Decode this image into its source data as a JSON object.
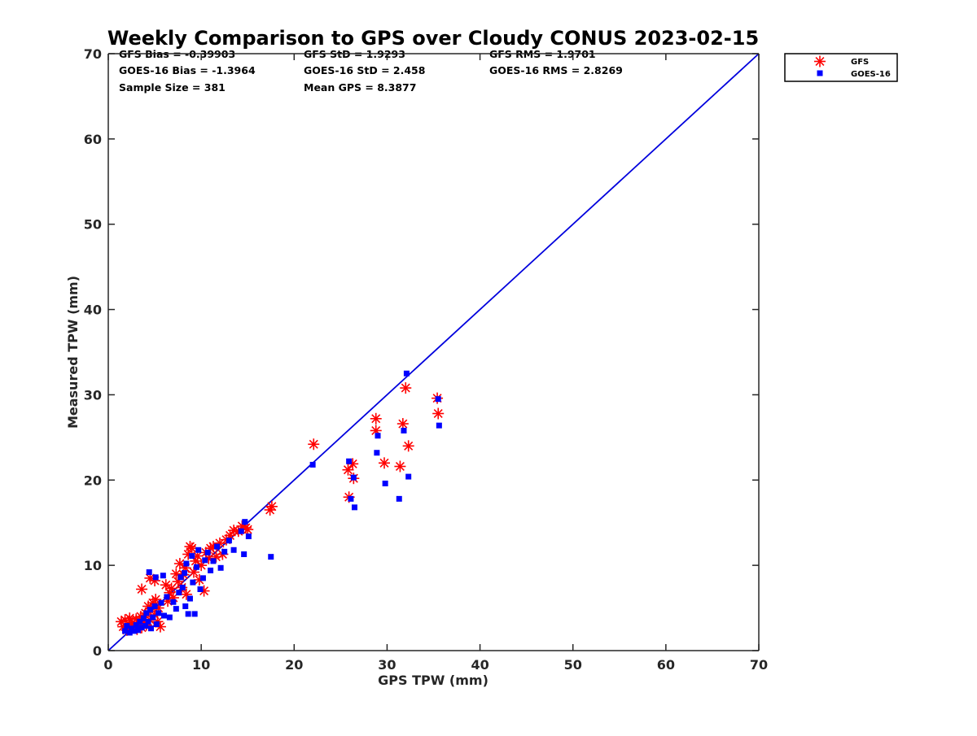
{
  "chart_data": {
    "type": "scatter",
    "title": "Weekly Comparison to GPS over Cloudy CONUS 2023-02-15",
    "xlabel": "GPS TPW (mm)",
    "ylabel": "Measured TPW (mm)",
    "xlim": [
      0,
      70
    ],
    "ylim": [
      0,
      70
    ],
    "xticks": [
      "0",
      "10",
      "20",
      "30",
      "40",
      "50",
      "60",
      "70"
    ],
    "yticks": [
      "0",
      "10",
      "20",
      "30",
      "40",
      "50",
      "60",
      "70"
    ],
    "grid": false,
    "legend_position": "outside top-right",
    "stats": [
      "GFS Bias = -0.39903",
      "GFS StD = 1.9293",
      "GFS RMS = 1.9701",
      "GOES-16 Bias = -1.3964",
      "GOES-16 StD = 2.458",
      "GOES-16 RMS = 2.8269",
      "Sample Size = 381",
      "Mean GPS = 8.3877"
    ],
    "reference_line": {
      "x": [
        0,
        70
      ],
      "y": [
        0,
        70
      ],
      "color": "#0000dd"
    },
    "series": [
      {
        "name": "GFS",
        "marker": "asterisk",
        "color": "#ff0000",
        "points": [
          [
            1.4,
            3.4
          ],
          [
            1.6,
            2.8
          ],
          [
            1.8,
            3.6
          ],
          [
            2.0,
            2.4
          ],
          [
            2.2,
            3.1
          ],
          [
            2.3,
            3.8
          ],
          [
            2.5,
            2.6
          ],
          [
            2.6,
            3.3
          ],
          [
            2.8,
            2.9
          ],
          [
            3.0,
            3.7
          ],
          [
            3.1,
            2.5
          ],
          [
            3.3,
            3.2
          ],
          [
            3.5,
            4.0
          ],
          [
            3.6,
            2.7
          ],
          [
            3.8,
            3.5
          ],
          [
            4.0,
            4.4
          ],
          [
            4.1,
            3.0
          ],
          [
            4.3,
            5.2
          ],
          [
            4.5,
            3.6
          ],
          [
            4.6,
            4.9
          ],
          [
            4.8,
            5.6
          ],
          [
            5.0,
            4.2
          ],
          [
            5.1,
            6.0
          ],
          [
            5.3,
            3.4
          ],
          [
            5.4,
            5.0
          ],
          [
            5.6,
            2.8
          ],
          [
            3.6,
            7.2
          ],
          [
            4.5,
            8.5
          ],
          [
            5.0,
            8.2
          ],
          [
            6.2,
            7.7
          ],
          [
            6.4,
            5.8
          ],
          [
            6.6,
            6.8
          ],
          [
            6.8,
            7.3
          ],
          [
            7.0,
            6.2
          ],
          [
            7.3,
            9.0
          ],
          [
            7.5,
            8.1
          ],
          [
            7.7,
            10.2
          ],
          [
            7.9,
            7.4
          ],
          [
            8.1,
            8.9
          ],
          [
            8.3,
            9.7
          ],
          [
            8.4,
            6.6
          ],
          [
            8.6,
            11.3
          ],
          [
            8.8,
            12.2
          ],
          [
            9.0,
            12.0
          ],
          [
            9.2,
            9.2
          ],
          [
            9.4,
            10.5
          ],
          [
            9.6,
            11.1
          ],
          [
            9.8,
            8.3
          ],
          [
            10.0,
            10.0
          ],
          [
            10.3,
            7.0
          ],
          [
            10.5,
            11.5
          ],
          [
            10.8,
            10.8
          ],
          [
            11.0,
            12.0
          ],
          [
            11.3,
            12.2
          ],
          [
            11.6,
            11.0
          ],
          [
            12.0,
            12.6
          ],
          [
            12.3,
            11.3
          ],
          [
            12.7,
            13.0
          ],
          [
            13.1,
            13.5
          ],
          [
            13.5,
            14.1
          ],
          [
            14.0,
            14.0
          ],
          [
            14.4,
            14.6
          ],
          [
            14.8,
            14.4
          ],
          [
            15.0,
            14.2
          ],
          [
            17.4,
            16.5
          ],
          [
            17.6,
            16.9
          ],
          [
            22.1,
            24.2
          ],
          [
            25.8,
            21.2
          ],
          [
            26.3,
            21.9
          ],
          [
            25.9,
            18.0
          ],
          [
            26.4,
            20.2
          ],
          [
            28.8,
            27.2
          ],
          [
            28.8,
            25.8
          ],
          [
            29.7,
            22.0
          ],
          [
            31.4,
            21.6
          ],
          [
            31.7,
            26.6
          ],
          [
            32.0,
            30.8
          ],
          [
            32.3,
            24.0
          ],
          [
            35.4,
            29.6
          ],
          [
            35.5,
            27.8
          ]
        ]
      },
      {
        "name": "GOES-16",
        "marker": "square",
        "color": "#0000ff",
        "points": [
          [
            1.8,
            2.3
          ],
          [
            2.0,
            2.9
          ],
          [
            2.3,
            2.1
          ],
          [
            2.5,
            2.6
          ],
          [
            2.8,
            2.3
          ],
          [
            3.0,
            3.0
          ],
          [
            3.2,
            2.4
          ],
          [
            3.4,
            3.4
          ],
          [
            3.6,
            2.7
          ],
          [
            3.8,
            3.8
          ],
          [
            4.0,
            2.9
          ],
          [
            4.1,
            4.4
          ],
          [
            4.3,
            3.4
          ],
          [
            4.5,
            4.8
          ],
          [
            4.6,
            2.6
          ],
          [
            4.8,
            3.9
          ],
          [
            5.0,
            5.2
          ],
          [
            5.2,
            3.1
          ],
          [
            5.4,
            4.4
          ],
          [
            5.7,
            5.6
          ],
          [
            6.0,
            4.1
          ],
          [
            6.3,
            6.3
          ],
          [
            6.6,
            3.9
          ],
          [
            7.0,
            5.7
          ],
          [
            7.3,
            4.9
          ],
          [
            4.4,
            9.2
          ],
          [
            5.1,
            8.6
          ],
          [
            5.9,
            8.8
          ],
          [
            7.6,
            6.8
          ],
          [
            7.8,
            8.6
          ],
          [
            8.0,
            7.4
          ],
          [
            8.2,
            9.1
          ],
          [
            8.3,
            5.2
          ],
          [
            8.4,
            10.2
          ],
          [
            8.6,
            4.3
          ],
          [
            8.8,
            6.1
          ],
          [
            9.0,
            11.1
          ],
          [
            9.1,
            8.0
          ],
          [
            9.3,
            4.3
          ],
          [
            9.5,
            9.8
          ],
          [
            9.7,
            11.8
          ],
          [
            9.9,
            7.2
          ],
          [
            10.2,
            8.5
          ],
          [
            10.4,
            10.6
          ],
          [
            10.7,
            11.5
          ],
          [
            11.0,
            9.4
          ],
          [
            11.3,
            10.5
          ],
          [
            11.7,
            12.2
          ],
          [
            12.1,
            9.7
          ],
          [
            12.5,
            11.6
          ],
          [
            13.0,
            12.9
          ],
          [
            13.5,
            11.8
          ],
          [
            14.3,
            14.0
          ],
          [
            14.6,
            11.3
          ],
          [
            14.7,
            15.1
          ],
          [
            15.1,
            13.4
          ],
          [
            17.5,
            11.0
          ],
          [
            22.0,
            21.8
          ],
          [
            25.9,
            22.2
          ],
          [
            26.1,
            17.8
          ],
          [
            26.5,
            16.8
          ],
          [
            26.4,
            20.3
          ],
          [
            28.9,
            23.2
          ],
          [
            29.0,
            25.2
          ],
          [
            29.8,
            19.6
          ],
          [
            31.3,
            17.8
          ],
          [
            31.8,
            25.8
          ],
          [
            32.1,
            32.5
          ],
          [
            32.3,
            20.4
          ],
          [
            35.5,
            29.5
          ],
          [
            35.6,
            26.4
          ]
        ]
      }
    ]
  }
}
